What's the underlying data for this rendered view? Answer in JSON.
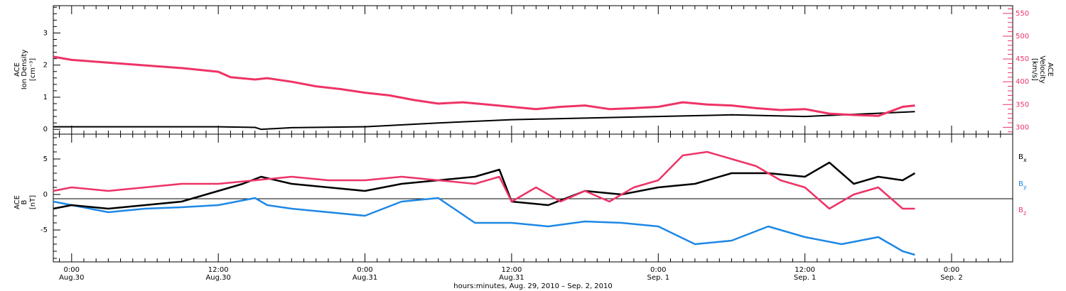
{
  "chart_data": [
    {
      "type": "scatter",
      "panel": "top",
      "ylabel_left": [
        "ACE",
        "Ion Density",
        "[cm⁻³]"
      ],
      "ylabel_right": [
        "ACE",
        "Velocity",
        "[km/s]"
      ],
      "left_ticks": [
        "0",
        "1",
        "2",
        "3"
      ],
      "left_ylim": [
        -0.15,
        3.85
      ],
      "right_ticks": [
        "300",
        "350",
        "400",
        "450",
        "500",
        "550"
      ],
      "right_ylim": [
        285,
        567
      ],
      "series": [
        {
          "axis": "left",
          "color": "#000000",
          "x": [
            -1.5,
            0,
            6,
            12,
            15,
            15.5,
            18,
            24,
            30,
            36,
            42,
            48,
            54,
            60,
            66,
            69
          ],
          "y": [
            0.08,
            0.08,
            0.08,
            0.08,
            0.06,
            0.0,
            0.05,
            0.08,
            0.2,
            0.3,
            0.35,
            0.4,
            0.45,
            0.4,
            0.5,
            0.55
          ]
        },
        {
          "axis": "right",
          "color": "#ee3366",
          "x": [
            -1.5,
            0,
            3,
            6,
            9,
            12,
            13,
            15,
            16,
            18,
            20,
            22,
            24,
            26,
            28,
            30,
            32,
            34,
            36,
            38,
            40,
            42,
            44,
            46,
            48,
            50,
            52,
            54,
            56,
            58,
            60,
            62,
            64,
            66,
            68,
            69
          ],
          "y": [
            455,
            448,
            442,
            436,
            430,
            422,
            410,
            405,
            408,
            400,
            390,
            384,
            376,
            370,
            360,
            352,
            355,
            350,
            345,
            340,
            345,
            348,
            340,
            342,
            345,
            355,
            350,
            348,
            342,
            338,
            340,
            330,
            327,
            325,
            345,
            348
          ]
        }
      ]
    },
    {
      "type": "scatter",
      "panel": "bottom",
      "ylabel_left": [
        "ACE",
        "B",
        "[nT]"
      ],
      "left_ticks": [
        "-5",
        "0",
        "5"
      ],
      "ylim": [
        -9.5,
        8.5
      ],
      "legend": [
        {
          "label": "B",
          "sub": "x",
          "color": "#000000"
        },
        {
          "label": "B",
          "sub": "y",
          "color": "#1e88e5"
        },
        {
          "label": "B",
          "sub": "z",
          "color": "#ee3366"
        }
      ],
      "series": [
        {
          "name": "Bx",
          "color": "#000000",
          "x": [
            -1.5,
            0,
            3,
            6,
            9,
            12,
            14,
            15.5,
            18,
            21,
            24,
            27,
            30,
            33,
            35,
            36,
            39,
            42,
            45,
            48,
            51,
            54,
            57,
            60,
            62,
            64,
            66,
            68,
            69
          ],
          "y": [
            -2,
            -1.5,
            -2,
            -1.5,
            -1,
            0.5,
            1.5,
            2.5,
            1.5,
            1,
            0.5,
            1.5,
            2,
            2.5,
            3.5,
            -1,
            -1.5,
            0.5,
            0,
            1,
            1.5,
            3,
            3,
            2.5,
            4.5,
            1.5,
            2.5,
            2,
            3
          ]
        },
        {
          "name": "By",
          "color": "#1e88e5",
          "x": [
            -1.5,
            0,
            3,
            6,
            9,
            12,
            15,
            16,
            18,
            21,
            24,
            27,
            30,
            33,
            36,
            39,
            42,
            45,
            48,
            51,
            54,
            57,
            60,
            63,
            66,
            68,
            69
          ],
          "y": [
            -1,
            -1.5,
            -2.5,
            -2,
            -1.8,
            -1.5,
            -0.5,
            -1.5,
            -2,
            -2.5,
            -3,
            -1,
            -0.5,
            -4,
            -4,
            -4.5,
            -3.8,
            -4,
            -4.5,
            -7,
            -6.5,
            -4.5,
            -6,
            -7,
            -6,
            -8,
            -8.5
          ]
        },
        {
          "name": "Bz",
          "color": "#ee3366",
          "x": [
            -1.5,
            0,
            3,
            6,
            9,
            12,
            15,
            18,
            21,
            24,
            27,
            30,
            33,
            35,
            36,
            38,
            40,
            42,
            44,
            46,
            48,
            50,
            52,
            54,
            56,
            58,
            60,
            62,
            64,
            66,
            68,
            69
          ],
          "y": [
            0.5,
            1,
            0.5,
            1,
            1.5,
            1.5,
            2,
            2.5,
            2,
            2,
            2.5,
            2,
            1.5,
            2.5,
            -1,
            1,
            -1,
            0.5,
            -1,
            1,
            2,
            5.5,
            6,
            5,
            4,
            2,
            1,
            -2,
            0,
            1,
            -2,
            -2
          ]
        }
      ]
    }
  ],
  "x_axis": {
    "range_hours": [
      -1.5,
      77
    ],
    "tick_hours": [
      0,
      12,
      24,
      36,
      48,
      60,
      72
    ],
    "tick_times": [
      "0:00",
      "12:00",
      "0:00",
      "12:00",
      "0:00",
      "12:00",
      "0:00"
    ],
    "tick_dates": [
      "Aug.30",
      "Aug.30",
      "Aug.31",
      "Aug.31",
      "Sep. 1",
      "Sep. 1",
      "Sep. 2"
    ],
    "title": "hours:minutes, Aug. 29, 2010 – Sep.  2, 2010"
  }
}
